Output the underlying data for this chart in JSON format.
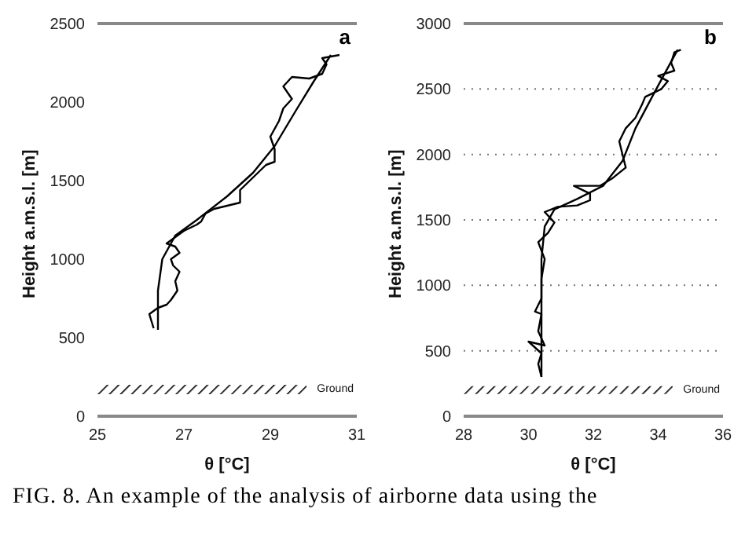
{
  "chart_data": [
    {
      "type": "line",
      "title": "a",
      "xlabel": "θ [°C]",
      "ylabel": "Height a.m.s.l. [m]",
      "xlim": [
        25,
        31
      ],
      "xticks": [
        25,
        27,
        29,
        31
      ],
      "ylim": [
        0,
        2500
      ],
      "yticks": [
        0,
        500,
        1000,
        1500,
        2000,
        2500
      ],
      "grid": false,
      "marker": "none",
      "line_style": "solid",
      "series": [
        {
          "color": "#000000",
          "x": [
            26.3,
            26.2,
            26.4,
            26.5,
            26.6,
            26.7,
            26.85,
            26.8,
            26.9,
            26.75,
            26.7,
            26.9,
            26.8,
            26.6,
            26.8,
            27.0,
            27.3,
            27.4,
            27.5,
            27.7,
            28.0,
            28.3,
            28.3,
            28.6,
            28.9,
            29.1,
            29.1,
            29.0,
            29.2,
            29.3,
            29.5,
            29.3,
            29.5,
            29.9,
            30.2,
            30.3,
            30.2,
            30.6
          ],
          "values": [
            560,
            650,
            690,
            700,
            710,
            740,
            800,
            860,
            920,
            960,
            1000,
            1040,
            1080,
            1100,
            1140,
            1180,
            1220,
            1240,
            1290,
            1320,
            1340,
            1360,
            1440,
            1520,
            1600,
            1620,
            1700,
            1780,
            1880,
            1960,
            2020,
            2100,
            2160,
            2150,
            2180,
            2240,
            2280,
            2300
          ]
        },
        {
          "color": "#000000",
          "x": [
            26.4,
            26.4,
            26.5,
            26.8,
            27.3,
            28.0,
            28.6,
            29.1,
            29.6,
            30.0,
            30.4
          ],
          "values": [
            550,
            800,
            1000,
            1150,
            1250,
            1400,
            1550,
            1720,
            1950,
            2130,
            2300
          ]
        }
      ],
      "bands": [
        {
          "axis": "y",
          "from": 140,
          "to": 200,
          "label": "Ground"
        }
      ],
      "annotations": [
        "FIG. 8. An example of the analysis of airborne data using the"
      ]
    },
    {
      "type": "line",
      "title": "b",
      "xlabel": "θ [°C]",
      "ylabel": "Height a.m.s.l. [m]",
      "xlim": [
        28,
        36
      ],
      "xticks": [
        28,
        30,
        32,
        34,
        36
      ],
      "ylim": [
        0,
        3000
      ],
      "yticks": [
        0,
        500,
        1000,
        1500,
        2000,
        2500,
        3000
      ],
      "grid": "y",
      "marker": "none",
      "line_style": "solid",
      "series": [
        {
          "color": "#000000",
          "x": [
            30.4,
            30.3,
            30.4,
            30.0,
            30.5,
            30.3,
            30.4,
            30.2,
            30.4,
            30.4,
            30.5,
            30.3,
            30.6,
            30.8,
            30.5,
            30.9,
            31.5,
            31.9,
            31.9,
            31.4,
            32.2,
            32.6,
            33.0,
            32.9,
            32.8,
            33.0,
            33.3,
            33.5,
            33.6,
            34.1,
            34.3,
            34.0,
            34.5,
            34.4,
            34.5,
            34.7
          ],
          "values": [
            300,
            400,
            480,
            570,
            540,
            650,
            780,
            800,
            900,
            1050,
            1200,
            1330,
            1400,
            1480,
            1560,
            1600,
            1610,
            1650,
            1700,
            1760,
            1760,
            1820,
            1900,
            2000,
            2100,
            2200,
            2280,
            2380,
            2440,
            2500,
            2560,
            2600,
            2640,
            2700,
            2780,
            2800
          ]
        },
        {
          "color": "#000000",
          "x": [
            30.4,
            30.4,
            30.5,
            30.8,
            31.5,
            32.3,
            32.9,
            33.3,
            33.9,
            34.6
          ],
          "values": [
            300,
            1200,
            1450,
            1580,
            1660,
            1760,
            1950,
            2200,
            2480,
            2800
          ]
        }
      ],
      "bands": [
        {
          "axis": "y",
          "from": 170,
          "to": 230,
          "label": "Ground"
        }
      ]
    }
  ]
}
